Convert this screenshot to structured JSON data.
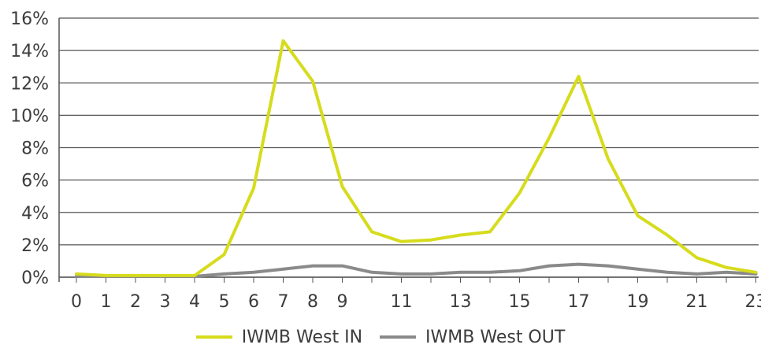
{
  "chart_data": {
    "type": "line",
    "title": "",
    "xlabel": "",
    "ylabel": "",
    "x": [
      0,
      1,
      2,
      3,
      4,
      5,
      6,
      7,
      8,
      9,
      10,
      11,
      12,
      13,
      14,
      15,
      16,
      17,
      18,
      19,
      20,
      21,
      22,
      23
    ],
    "x_tick_labels": [
      "0",
      "1",
      "2",
      "3",
      "4",
      "5",
      "6",
      "7",
      "8",
      "9",
      "11",
      "13",
      "15",
      "17",
      "19",
      "21",
      "23"
    ],
    "y_tick_labels": [
      "0%",
      "2%",
      "4%",
      "6%",
      "8%",
      "10%",
      "12%",
      "14%",
      "16%"
    ],
    "ylim": [
      0,
      16
    ],
    "y_ticks": [
      0,
      2,
      4,
      6,
      8,
      10,
      12,
      14,
      16
    ],
    "grid": "horizontal",
    "legend_position": "bottom-center",
    "series": [
      {
        "name": "IWMB West IN",
        "color": "#d6dc1c",
        "values": [
          0.2,
          0.1,
          0.1,
          0.1,
          0.1,
          1.4,
          5.5,
          14.6,
          12.1,
          5.6,
          2.8,
          2.2,
          2.3,
          2.6,
          2.8,
          5.2,
          8.6,
          12.4,
          7.3,
          3.8,
          2.6,
          1.2,
          0.6,
          0.3
        ]
      },
      {
        "name": "IWMB West OUT",
        "color": "#8a8a8a",
        "values": [
          0.05,
          0.05,
          0.05,
          0.05,
          0.05,
          0.2,
          0.3,
          0.5,
          0.7,
          0.7,
          0.3,
          0.2,
          0.2,
          0.3,
          0.3,
          0.4,
          0.7,
          0.8,
          0.7,
          0.5,
          0.3,
          0.2,
          0.3,
          0.2
        ]
      }
    ]
  }
}
